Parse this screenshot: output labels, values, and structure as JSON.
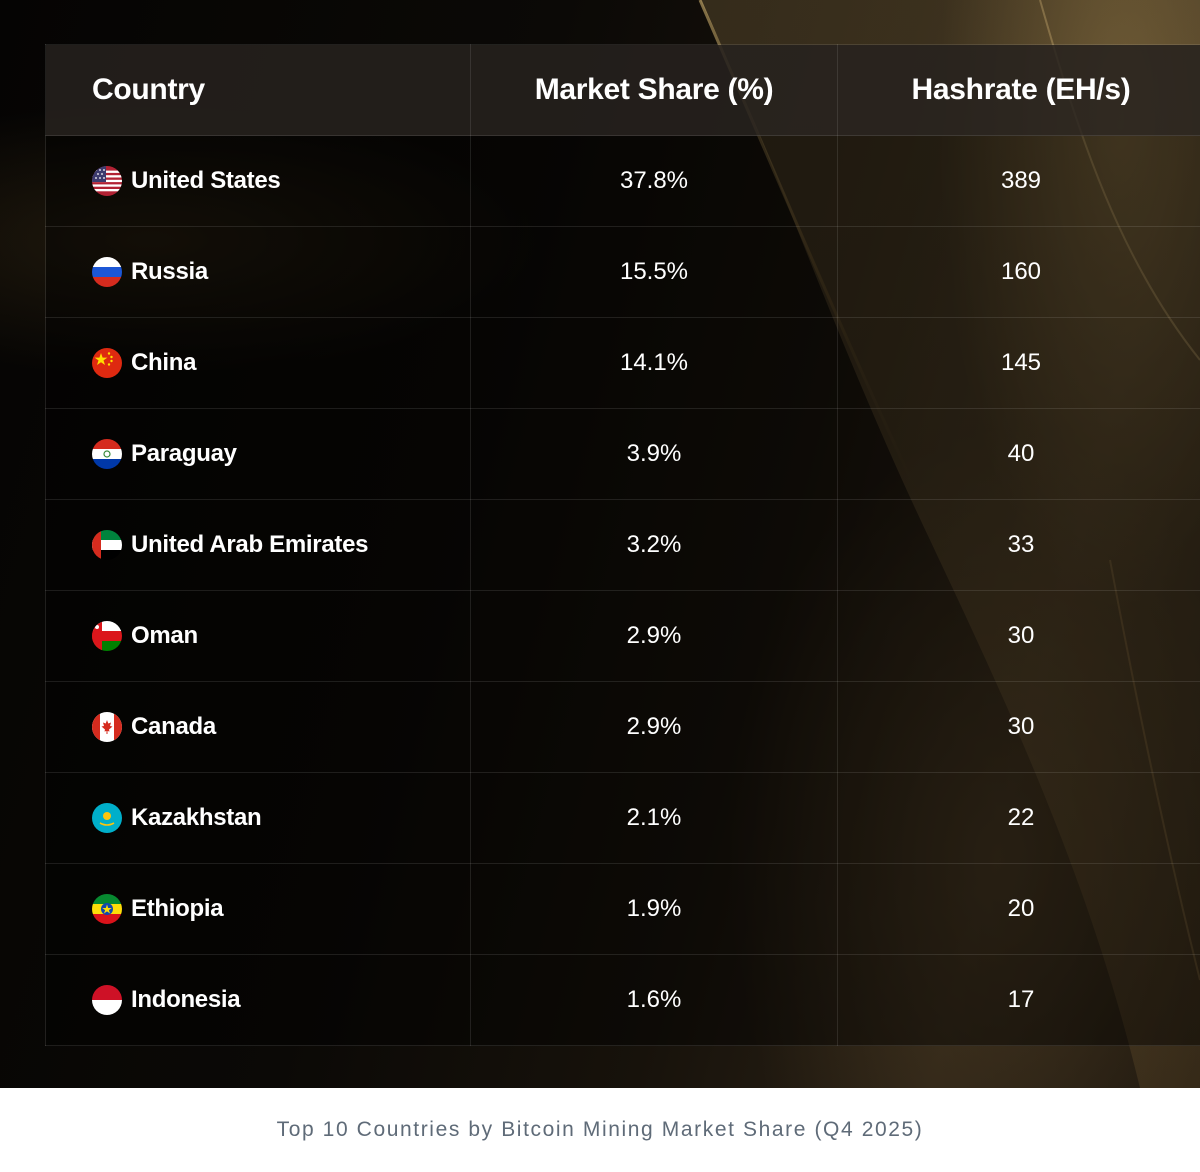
{
  "table": {
    "headers": {
      "country": "Country",
      "market_share": "Market Share (%)",
      "hashrate": "Hashrate (EH/s)"
    },
    "rows": [
      {
        "country": "United States",
        "flag": "us-flag-icon",
        "market_share": "37.8%",
        "hashrate": "389"
      },
      {
        "country": "Russia",
        "flag": "russia-flag-icon",
        "market_share": "15.5%",
        "hashrate": "160"
      },
      {
        "country": "China",
        "flag": "china-flag-icon",
        "market_share": "14.1%",
        "hashrate": "145"
      },
      {
        "country": "Paraguay",
        "flag": "paraguay-flag-icon",
        "market_share": "3.9%",
        "hashrate": "40"
      },
      {
        "country": "United Arab Emirates",
        "flag": "uae-flag-icon",
        "market_share": "3.2%",
        "hashrate": "33"
      },
      {
        "country": "Oman",
        "flag": "oman-flag-icon",
        "market_share": "2.9%",
        "hashrate": "30"
      },
      {
        "country": "Canada",
        "flag": "canada-flag-icon",
        "market_share": "2.9%",
        "hashrate": "30"
      },
      {
        "country": "Kazakhstan",
        "flag": "kazakhstan-flag-icon",
        "market_share": "2.1%",
        "hashrate": "22"
      },
      {
        "country": "Ethiopia",
        "flag": "ethiopia-flag-icon",
        "market_share": "1.9%",
        "hashrate": "20"
      },
      {
        "country": "Indonesia",
        "flag": "indonesia-flag-icon",
        "market_share": "1.6%",
        "hashrate": "17"
      }
    ]
  },
  "caption": "Top 10 Countries by Bitcoin Mining Market Share (Q4 2025)",
  "chart_data": {
    "type": "table",
    "columns": [
      "Country",
      "Market Share (%)",
      "Hashrate (EH/s)"
    ],
    "rows": [
      [
        "United States",
        "37.8%",
        "389"
      ],
      [
        "Russia",
        "15.5%",
        "160"
      ],
      [
        "China",
        "14.1%",
        "145"
      ],
      [
        "Paraguay",
        "3.9%",
        "40"
      ],
      [
        "United Arab Emirates",
        "3.2%",
        "33"
      ],
      [
        "Oman",
        "2.9%",
        "30"
      ],
      [
        "Canada",
        "2.9%",
        "30"
      ],
      [
        "Kazakhstan",
        "2.1%",
        "22"
      ],
      [
        "Ethiopia",
        "1.9%",
        "20"
      ],
      [
        "Indonesia",
        "1.6%",
        "17"
      ]
    ],
    "title": "Top 10 Countries by Bitcoin Mining Market Share (Q4 2025)"
  },
  "colors": {
    "text": "#ffffff",
    "caption": "#5f6b78",
    "background": "#0b0906",
    "accent_gold": "#cdaa5f"
  }
}
